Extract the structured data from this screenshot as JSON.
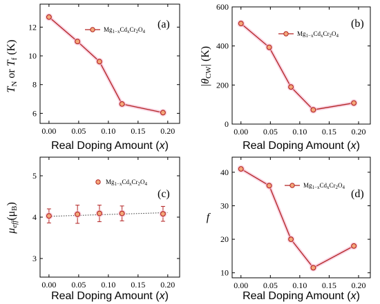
{
  "colors": {
    "series": "#b22222",
    "marker_fill": "#f3a77a",
    "glow": "#f7c1d5",
    "fit": "#333333"
  },
  "chart_data": [
    {
      "id": "a",
      "type": "line",
      "panel_label": "(a)",
      "xlabel": "Real Doping Amount (x)",
      "ylabel": "T_N or T_f (K)",
      "xlim": [
        -0.015,
        0.22
      ],
      "ylim": [
        5.3,
        13.6
      ],
      "xticks": [
        "0.00",
        "0.05",
        "0.10",
        "0.15",
        "0.20"
      ],
      "xtick_values": [
        0,
        0.05,
        0.1,
        0.15,
        0.2
      ],
      "yticks": [
        "6",
        "8",
        "10",
        "12"
      ],
      "ytick_values": [
        6,
        8,
        10,
        12
      ],
      "legend": "Mg1-xCdxCr2O4",
      "legend_position": "top-right",
      "x": [
        0.0,
        0.048,
        0.085,
        0.123,
        0.192
      ],
      "series": [
        {
          "values": [
            12.7,
            11.0,
            9.6,
            6.65,
            6.05
          ]
        }
      ]
    },
    {
      "id": "b",
      "type": "line",
      "panel_label": "(b)",
      "xlabel": "Real Doping Amount (x)",
      "ylabel": "|θ_CW| (K)",
      "xlim": [
        -0.015,
        0.22
      ],
      "ylim": [
        0,
        600
      ],
      "xticks": [
        "0.00",
        "0.05",
        "0.10",
        "0.15",
        "0.20"
      ],
      "xtick_values": [
        0,
        0.05,
        0.1,
        0.15,
        0.2
      ],
      "yticks": [
        "0",
        "200",
        "400",
        "600"
      ],
      "ytick_values": [
        0,
        200,
        400,
        600
      ],
      "legend": "Mg1-xCdxCr2O4",
      "legend_position": "top-right",
      "x": [
        0.0,
        0.048,
        0.085,
        0.123,
        0.192
      ],
      "series": [
        {
          "values": [
            515,
            393,
            190,
            73,
            108
          ]
        }
      ]
    },
    {
      "id": "c",
      "type": "scatter",
      "panel_label": "(c)",
      "xlabel": "Real Doping Amount (x)",
      "ylabel": "μ_eff (μ_B)",
      "xlim": [
        -0.015,
        0.22
      ],
      "ylim": [
        2.55,
        5.45
      ],
      "xticks": [
        "0.00",
        "0.05",
        "0.10",
        "0.15",
        "0.20"
      ],
      "xtick_values": [
        0,
        0.05,
        0.1,
        0.15,
        0.2
      ],
      "yticks": [
        "3",
        "4",
        "5"
      ],
      "ytick_values": [
        3,
        4,
        5
      ],
      "legend": "Mg1-xCdxCr2O4",
      "legend_position": "top-right",
      "x": [
        0.0,
        0.048,
        0.085,
        0.123,
        0.192
      ],
      "series": [
        {
          "values": [
            4.03,
            4.07,
            4.09,
            4.09,
            4.08
          ],
          "errors": [
            0.17,
            0.22,
            0.2,
            0.18,
            0.18
          ]
        }
      ],
      "fit": {
        "style": "dotted",
        "x": [
          0.0,
          0.2
        ],
        "y": [
          4.02,
          4.11
        ]
      }
    },
    {
      "id": "d",
      "type": "line",
      "panel_label": "(d)",
      "xlabel": "Real Doping Amount (x)",
      "ylabel": "f",
      "xlim": [
        -0.015,
        0.22
      ],
      "ylim": [
        8.5,
        44.5
      ],
      "xticks": [
        "0.00",
        "0.05",
        "0.10",
        "0.15",
        "0.20"
      ],
      "xtick_values": [
        0,
        0.05,
        0.1,
        0.15,
        0.2
      ],
      "yticks": [
        "10",
        "20",
        "30",
        "40"
      ],
      "ytick_values": [
        10,
        20,
        30,
        40
      ],
      "legend": "Mg1-xCdxCr2O4",
      "legend_position": "top-right",
      "x": [
        0.0,
        0.048,
        0.085,
        0.123,
        0.192
      ],
      "series": [
        {
          "values": [
            41,
            36,
            20,
            11.5,
            18
          ]
        }
      ]
    }
  ]
}
